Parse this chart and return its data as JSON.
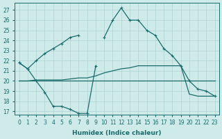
{
  "x": [
    0,
    1,
    2,
    3,
    4,
    5,
    6,
    7,
    8,
    9,
    10,
    11,
    12,
    13,
    14,
    15,
    16,
    17,
    18,
    19,
    20,
    21,
    22,
    23
  ],
  "curve_top": [
    21.8,
    21.2,
    22.0,
    22.7,
    23.2,
    23.7,
    24.3,
    24.5,
    null,
    null,
    24.3,
    26.0,
    27.2,
    26.0,
    26.0,
    25.0,
    24.5,
    23.2,
    22.5,
    21.5,
    20.0,
    19.2,
    19.0,
    18.5
  ],
  "curve_dip": [
    21.8,
    21.2,
    20.0,
    18.9,
    17.5,
    17.5,
    17.2,
    16.8,
    16.8,
    21.5,
    null,
    null,
    null,
    null,
    null,
    null,
    null,
    null,
    null,
    null,
    null,
    null,
    null,
    null
  ],
  "curve_flat": [
    20.0,
    20.0,
    20.0,
    20.0,
    20.0,
    20.0,
    20.0,
    20.0,
    20.0,
    20.0,
    20.0,
    20.0,
    20.0,
    20.0,
    20.0,
    20.0,
    20.0,
    20.0,
    20.0,
    20.0,
    20.0,
    20.0,
    20.0,
    20.0
  ],
  "curve_rise": [
    20.0,
    20.0,
    20.1,
    20.1,
    20.1,
    20.1,
    20.2,
    20.3,
    20.3,
    20.5,
    20.8,
    21.0,
    21.2,
    21.3,
    21.5,
    21.5,
    21.5,
    21.5,
    21.5,
    21.5,
    18.7,
    18.5,
    18.5,
    18.5
  ],
  "bg_color": "#ceeae9",
  "grid_color": "#aed4d3",
  "line_color": "#1a6b6b",
  "ylim_min": 16.7,
  "ylim_max": 27.7,
  "yticks": [
    17,
    18,
    19,
    20,
    21,
    22,
    23,
    24,
    25,
    26,
    27
  ],
  "xlabel": "Humidex (Indice chaleur)"
}
